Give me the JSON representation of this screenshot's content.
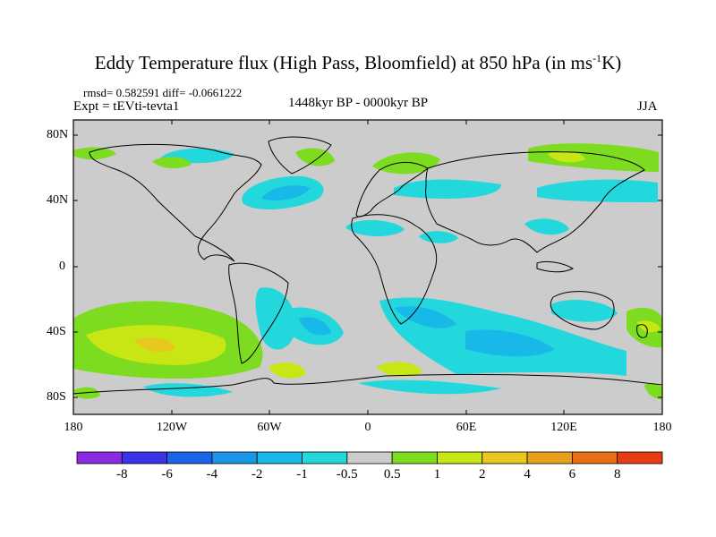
{
  "header": {
    "title_main": "Eddy Temperature flux (High Pass, Bloomfield) at 850 hPa (in ms",
    "title_sup": "-1",
    "title_end": "K)",
    "stats": "rmsd= 0.582591 diff= -0.0661222",
    "expt": "Expt = tEVti-tevta1",
    "period": "1448kyr BP - 0000kyr BP",
    "season": "JJA"
  },
  "axes": {
    "y_labels": [
      "80N",
      "40N",
      "0",
      "40S",
      "80S"
    ],
    "x_labels": [
      "180",
      "120W",
      "60W",
      "0",
      "60E",
      "120E",
      "180"
    ],
    "lon_range": [
      -180,
      180
    ],
    "lat_range": [
      -90,
      90
    ]
  },
  "colorbar": {
    "labels": [
      "-8",
      "-6",
      "-4",
      "-2",
      "-1",
      "-0.5",
      "0.5",
      "1",
      "2",
      "4",
      "6",
      "8"
    ],
    "colors": [
      "#8a2be2",
      "#3b33e6",
      "#1e64e6",
      "#1a96e6",
      "#18b9e8",
      "#22d8dc",
      "#cccccc",
      "#7ddc1f",
      "#c8e614",
      "#e6c81e",
      "#e6a01e",
      "#e66e14",
      "#e63c14"
    ]
  },
  "colors": {
    "land_bg": "#cccccc",
    "cyan": "#22d8dc",
    "light_blue": "#18b9e8",
    "green": "#7ddc1f",
    "yellow_green": "#c8e614",
    "yellow": "#e6c81e"
  }
}
